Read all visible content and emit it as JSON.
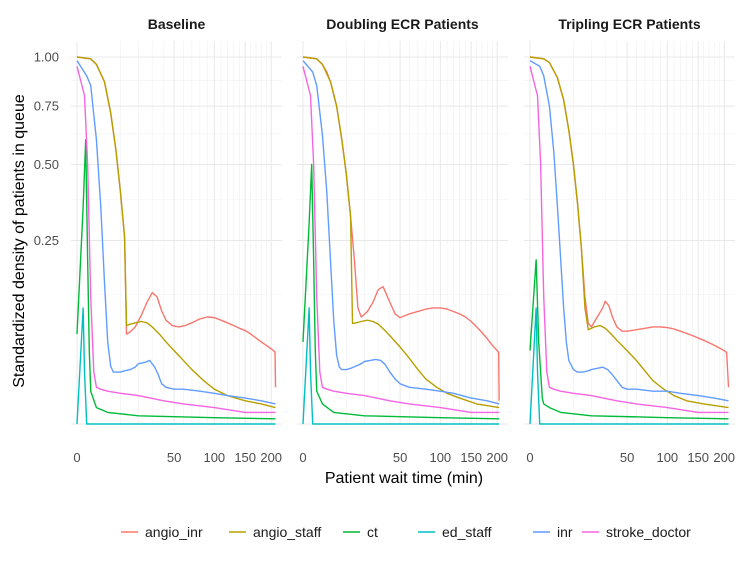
{
  "chart_data": {
    "type": "line",
    "xlabel": "Patient wait time (min)",
    "ylabel": "Standardized density of patients in queue",
    "x_scale": "sqrt",
    "y_scale": "sqrt",
    "xlim": [
      0,
      210
    ],
    "ylim": [
      0,
      1
    ],
    "x_ticks": [
      0,
      50,
      100,
      150,
      200
    ],
    "x_tick_labels": [
      "0",
      "50",
      "100",
      "150",
      "200"
    ],
    "y_ticks": [
      0.25,
      0.5,
      0.75,
      1.0
    ],
    "y_tick_labels": [
      "0.25",
      "0.50",
      "0.75",
      "1.00"
    ],
    "grid": true,
    "legend_position": "bottom",
    "legend": [
      "angio_inr",
      "angio_staff",
      "ct",
      "ed_staff",
      "inr",
      "stroke_doctor"
    ],
    "colors": {
      "angio_inr": "#F8766D",
      "angio_staff": "#B79F00",
      "ct": "#00BA38",
      "ed_staff": "#00BFC4",
      "inr": "#619CFF",
      "stroke_doctor": "#F564E3"
    },
    "panels": [
      {
        "title": "Baseline",
        "series": [
          {
            "name": "angio_inr",
            "x": [
              0,
              1,
              2,
              4,
              6,
              8,
              10,
              12,
              13,
              15,
              18,
              22,
              26,
              30,
              34,
              38,
              42,
              48,
              55,
              62,
              70,
              80,
              90,
              100,
              110,
              120,
              130,
              140,
              150,
              160,
              170,
              180,
              190,
              200,
              205,
              208,
              209
            ],
            "y": [
              1.0,
              0.99,
              0.96,
              0.87,
              0.72,
              0.56,
              0.4,
              0.26,
              0.06,
              0.063,
              0.07,
              0.088,
              0.11,
              0.128,
              0.12,
              0.095,
              0.08,
              0.072,
              0.07,
              0.072,
              0.076,
              0.082,
              0.085,
              0.084,
              0.08,
              0.076,
              0.072,
              0.068,
              0.065,
              0.06,
              0.055,
              0.05,
              0.046,
              0.042,
              0.04,
              0.038,
              0.01
            ]
          },
          {
            "name": "angio_staff",
            "x": [
              0,
              1,
              2,
              4,
              6,
              8,
              10,
              12,
              13,
              15,
              18,
              22,
              26,
              30,
              36,
              42,
              50,
              60,
              70,
              85,
              100,
              120,
              150,
              180,
              209
            ],
            "y": [
              1.0,
              0.99,
              0.96,
              0.87,
              0.72,
              0.56,
              0.4,
              0.26,
              0.072,
              0.074,
              0.076,
              0.078,
              0.076,
              0.07,
              0.06,
              0.05,
              0.04,
              0.03,
              0.022,
              0.014,
              0.009,
              0.006,
              0.004,
              0.003,
              0.002
            ]
          },
          {
            "name": "ct",
            "x": [
              0,
              0.2,
              0.4,
              0.6,
              0.8,
              1,
              2,
              5,
              20,
              100,
              209
            ],
            "y": [
              0.06,
              0.35,
              0.6,
              0.2,
              0.04,
              0.008,
              0.002,
              0.001,
              0.0005,
              0.0003,
              0.0002
            ]
          },
          {
            "name": "ed_staff",
            "x": [
              0,
              0.1,
              0.2,
              0.3,
              0.5,
              1,
              5,
              50,
              209
            ],
            "y": [
              0.0,
              0.05,
              0.1,
              0.02,
              0.0,
              0.0,
              0.0,
              0.0,
              0.0
            ]
          },
          {
            "name": "inr",
            "x": [
              0,
              0.5,
              1,
              2,
              3,
              4,
              5,
              6,
              7,
              8,
              10,
              12,
              15,
              18,
              20,
              24,
              28,
              32,
              35,
              38,
              42,
              50,
              60,
              80,
              100,
              120,
              150,
              180,
              209
            ],
            "y": [
              0.98,
              0.9,
              0.85,
              0.6,
              0.35,
              0.15,
              0.05,
              0.025,
              0.02,
              0.02,
              0.02,
              0.021,
              0.022,
              0.024,
              0.027,
              0.028,
              0.03,
              0.024,
              0.018,
              0.012,
              0.01,
              0.009,
              0.009,
              0.008,
              0.007,
              0.006,
              0.005,
              0.004,
              0.003
            ]
          },
          {
            "name": "stroke_doctor",
            "x": [
              0,
              0.3,
              0.6,
              1,
              1.5,
              2,
              3,
              5,
              10,
              20,
              40,
              60,
              100,
              150,
              209
            ],
            "y": [
              0.95,
              0.8,
              0.5,
              0.12,
              0.02,
              0.01,
              0.009,
              0.008,
              0.007,
              0.006,
              0.004,
              0.003,
              0.002,
              0.001,
              0.001
            ]
          }
        ]
      },
      {
        "title": "Doubling ECR Patients",
        "series": [
          {
            "name": "angio_inr",
            "x": [
              0,
              1,
              2,
              3,
              4,
              6,
              8,
              10,
              12,
              14,
              16,
              18,
              22,
              26,
              30,
              34,
              40,
              45,
              50,
              60,
              70,
              80,
              90,
              100,
              110,
              120,
              130,
              140,
              150,
              160,
              170,
              180,
              190,
              200,
              203,
              204
            ],
            "y": [
              1.0,
              0.99,
              0.96,
              0.92,
              0.87,
              0.75,
              0.6,
              0.46,
              0.32,
              0.2,
              0.1,
              0.085,
              0.094,
              0.11,
              0.134,
              0.14,
              0.11,
              0.09,
              0.084,
              0.09,
              0.094,
              0.098,
              0.1,
              0.1,
              0.098,
              0.094,
              0.09,
              0.085,
              0.078,
              0.07,
              0.062,
              0.054,
              0.046,
              0.04,
              0.038,
              0.004
            ]
          },
          {
            "name": "angio_staff",
            "x": [
              0,
              1,
              2,
              4,
              6,
              8,
              10,
              12,
              13,
              15,
              18,
              22,
              26,
              30,
              35,
              40,
              50,
              60,
              70,
              80,
              95,
              110,
              130,
              160,
              204
            ],
            "y": [
              1.0,
              0.99,
              0.96,
              0.87,
              0.75,
              0.6,
              0.46,
              0.32,
              0.075,
              0.076,
              0.078,
              0.08,
              0.078,
              0.074,
              0.066,
              0.058,
              0.044,
              0.032,
              0.022,
              0.015,
              0.01,
              0.007,
              0.005,
              0.003,
              0.002
            ]
          },
          {
            "name": "ct",
            "x": [
              0,
              0.2,
              0.4,
              0.6,
              0.8,
              1,
              2,
              5,
              20,
              100,
              204
            ],
            "y": [
              0.05,
              0.3,
              0.5,
              0.2,
              0.04,
              0.008,
              0.003,
              0.001,
              0.0005,
              0.0003,
              0.0002
            ]
          },
          {
            "name": "ed_staff",
            "x": [
              0,
              0.1,
              0.2,
              0.3,
              0.5,
              1,
              5,
              50,
              204
            ],
            "y": [
              0.0,
              0.05,
              0.1,
              0.02,
              0.0,
              0.0,
              0.0,
              0.0,
              0.0
            ]
          },
          {
            "name": "inr",
            "x": [
              0,
              0.5,
              1,
              2,
              3,
              4,
              5,
              6,
              7,
              8,
              10,
              12,
              15,
              18,
              20,
              24,
              28,
              32,
              36,
              40,
              45,
              50,
              60,
              80,
              100,
              120,
              150,
              180,
              204
            ],
            "y": [
              0.98,
              0.92,
              0.85,
              0.62,
              0.4,
              0.2,
              0.08,
              0.035,
              0.024,
              0.022,
              0.022,
              0.023,
              0.025,
              0.027,
              0.029,
              0.03,
              0.031,
              0.03,
              0.026,
              0.02,
              0.015,
              0.012,
              0.01,
              0.009,
              0.008,
              0.007,
              0.005,
              0.004,
              0.003
            ]
          },
          {
            "name": "stroke_doctor",
            "x": [
              0,
              0.3,
              0.6,
              1,
              1.5,
              2,
              3,
              5,
              10,
              20,
              40,
              60,
              100,
              150,
              204
            ],
            "y": [
              0.95,
              0.8,
              0.5,
              0.12,
              0.02,
              0.01,
              0.009,
              0.008,
              0.007,
              0.006,
              0.004,
              0.003,
              0.002,
              0.001,
              0.001
            ]
          }
        ]
      },
      {
        "title": "Tripling ECR Patients",
        "series": [
          {
            "name": "angio_inr",
            "x": [
              0,
              1,
              2,
              4,
              6,
              8,
              10,
              12,
              14,
              16,
              18,
              20,
              24,
              28,
              30,
              33,
              36,
              40,
              45,
              50,
              60,
              70,
              80,
              90,
              100,
              110,
              120,
              130,
              140,
              150,
              160,
              170,
              180,
              190,
              200,
              205,
              209
            ],
            "y": [
              1.0,
              0.99,
              0.97,
              0.89,
              0.78,
              0.64,
              0.5,
              0.36,
              0.23,
              0.12,
              0.075,
              0.07,
              0.085,
              0.1,
              0.112,
              0.104,
              0.085,
              0.07,
              0.064,
              0.064,
              0.066,
              0.068,
              0.07,
              0.07,
              0.069,
              0.067,
              0.064,
              0.061,
              0.058,
              0.055,
              0.052,
              0.049,
              0.046,
              0.043,
              0.04,
              0.038,
              0.01
            ]
          },
          {
            "name": "angio_staff",
            "x": [
              0,
              1,
              2,
              4,
              6,
              8,
              10,
              12,
              14,
              16,
              18,
              22,
              26,
              30,
              35,
              40,
              50,
              60,
              70,
              80,
              95,
              110,
              130,
              160,
              209
            ],
            "y": [
              1.0,
              0.99,
              0.97,
              0.89,
              0.78,
              0.64,
              0.5,
              0.36,
              0.23,
              0.1,
              0.066,
              0.07,
              0.072,
              0.068,
              0.06,
              0.052,
              0.04,
              0.03,
              0.021,
              0.014,
              0.009,
              0.006,
              0.004,
              0.003,
              0.002
            ]
          },
          {
            "name": "ct",
            "x": [
              0,
              0.2,
              0.4,
              0.6,
              0.8,
              1,
              2,
              5,
              20,
              100,
              209
            ],
            "y": [
              0.04,
              0.2,
              0.05,
              0.02,
              0.005,
              0.003,
              0.002,
              0.001,
              0.0005,
              0.0003,
              0.0002
            ]
          },
          {
            "name": "ed_staff",
            "x": [
              0,
              0.1,
              0.2,
              0.3,
              0.5,
              1,
              5,
              50,
              209
            ],
            "y": [
              0.0,
              0.05,
              0.1,
              0.02,
              0.0,
              0.0,
              0.0,
              0.0,
              0.0
            ]
          },
          {
            "name": "inr",
            "x": [
              0,
              0.5,
              1,
              2,
              3,
              4,
              5,
              6,
              7,
              8,
              10,
              12,
              15,
              18,
              20,
              24,
              28,
              32,
              36,
              40,
              45,
              50,
              60,
              80,
              100,
              120,
              150,
              180,
              209
            ],
            "y": [
              0.98,
              0.95,
              0.9,
              0.75,
              0.55,
              0.35,
              0.2,
              0.1,
              0.05,
              0.03,
              0.022,
              0.02,
              0.02,
              0.021,
              0.022,
              0.023,
              0.024,
              0.022,
              0.018,
              0.014,
              0.01,
              0.009,
              0.009,
              0.008,
              0.008,
              0.007,
              0.006,
              0.005,
              0.004
            ]
          },
          {
            "name": "stroke_doctor",
            "x": [
              0,
              0.3,
              0.6,
              1,
              1.5,
              2,
              3,
              5,
              10,
              20,
              40,
              60,
              100,
              150,
              209
            ],
            "y": [
              0.95,
              0.8,
              0.5,
              0.12,
              0.02,
              0.01,
              0.009,
              0.008,
              0.007,
              0.006,
              0.004,
              0.003,
              0.002,
              0.001,
              0.001
            ]
          }
        ]
      }
    ]
  }
}
